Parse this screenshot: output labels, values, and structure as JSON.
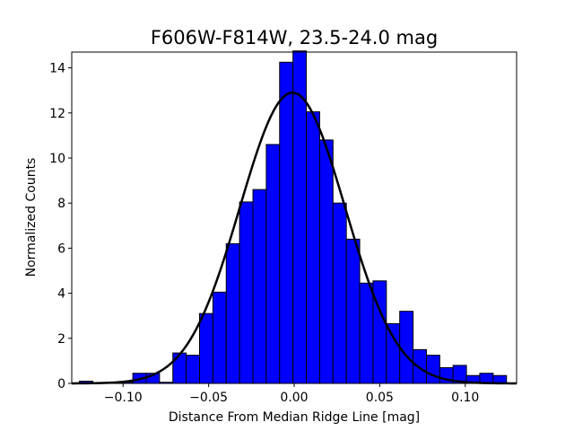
{
  "chart_data": {
    "type": "bar",
    "title": "F606W-F814W, 23.5-24.0 mag",
    "xlabel": "Distance From Median Ridge Line [mag]",
    "ylabel": "Normalized Counts",
    "xlim": [
      -0.13,
      0.13
    ],
    "ylim": [
      0,
      14.7
    ],
    "xticks": [
      -0.1,
      -0.05,
      0.0,
      0.05,
      0.1
    ],
    "xtick_labels": [
      "−0.10",
      "−0.05",
      "0.00",
      "0.05",
      "0.10"
    ],
    "yticks": [
      0,
      2,
      4,
      6,
      8,
      10,
      12,
      14
    ],
    "ytick_labels": [
      "0",
      "2",
      "4",
      "6",
      "8",
      "10",
      "12",
      "14"
    ],
    "grid": false,
    "bin_width": 0.0078,
    "bin_left_edges": [
      -0.1255,
      -0.1177,
      -0.1099,
      -0.1021,
      -0.0943,
      -0.0865,
      -0.0787,
      -0.0709,
      -0.0631,
      -0.0553,
      -0.0475,
      -0.0397,
      -0.0319,
      -0.0241,
      -0.0163,
      -0.0085,
      -0.0007,
      0.0071,
      0.0149,
      0.0227,
      0.0305,
      0.0383,
      0.0461,
      0.0539,
      0.0617,
      0.0695,
      0.0773,
      0.0851,
      0.0929,
      0.1007,
      0.1085,
      0.1163
    ],
    "counts": [
      0.1,
      0.0,
      0.05,
      0.05,
      0.45,
      0.45,
      0.05,
      1.35,
      1.25,
      3.1,
      4.05,
      6.2,
      8.05,
      8.6,
      10.6,
      14.25,
      14.75,
      12.05,
      10.8,
      8.0,
      6.4,
      4.45,
      4.55,
      2.65,
      3.2,
      1.5,
      1.25,
      0.7,
      0.8,
      0.35,
      0.45,
      0.35
    ],
    "bar_color": "#0000ff",
    "bar_edge_color": "#000000",
    "fit_curve": {
      "type": "gaussian",
      "amplitude": 12.9,
      "mean": -0.001,
      "sigma": 0.0307,
      "color": "#000000"
    }
  }
}
